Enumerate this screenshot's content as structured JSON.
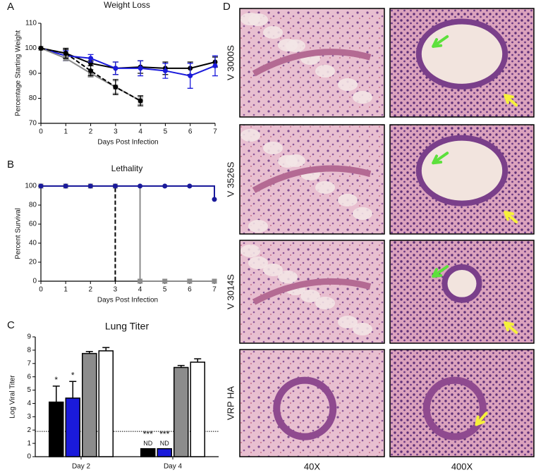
{
  "chart_data": [
    {
      "type": "line",
      "panel_label": "A",
      "title": "Weight Loss",
      "x_label": "Days Post Infection",
      "y_label": "Percentage Starting Weight",
      "x": [
        0,
        1,
        2,
        3,
        4,
        5,
        6,
        7
      ],
      "xlim": [
        0,
        7
      ],
      "xticks": [
        0,
        1,
        2,
        3,
        4,
        5,
        6,
        7
      ],
      "ylim": [
        70,
        110
      ],
      "yticks": [
        70,
        80,
        90,
        100,
        110
      ],
      "series": [
        {
          "color": "#000000",
          "line_style": "solid",
          "marker": "circle",
          "values": [
            100,
            98,
            94,
            92,
            92.5,
            92,
            92,
            94.5
          ],
          "errors": [
            0,
            1.5,
            1,
            2.5,
            2.5,
            2.5,
            2.5,
            2
          ]
        },
        {
          "color": "#1a1adb",
          "line_style": "solid",
          "marker": "circle",
          "values": [
            100,
            97,
            96,
            92,
            92,
            91,
            89,
            93
          ],
          "errors": [
            0,
            2,
            1.5,
            2.5,
            3,
            3,
            5,
            4
          ]
        },
        {
          "color": "#8c8c8c",
          "line_style": "solid",
          "marker": "square",
          "values": [
            100,
            96,
            90,
            84.5,
            79,
            null,
            null,
            null
          ],
          "errors": [
            0,
            1,
            1.5,
            2.5,
            1.5,
            null,
            null,
            null
          ]
        },
        {
          "color": "#000000",
          "line_style": "dashed",
          "marker": "circle",
          "values": [
            100,
            98,
            91,
            84.5,
            79,
            null,
            null,
            null
          ],
          "errors": [
            0,
            2,
            2,
            3,
            2,
            null,
            null,
            null
          ]
        }
      ]
    },
    {
      "type": "step",
      "panel_label": "B",
      "title": "Lethality",
      "x_label": "Days Post Infection",
      "y_label": "Percent Survival",
      "x": [
        0,
        1,
        2,
        3,
        4,
        5,
        6,
        7
      ],
      "xlim": [
        0,
        7
      ],
      "xticks": [
        0,
        1,
        2,
        3,
        4,
        5,
        6,
        7
      ],
      "ylim": [
        0,
        100
      ],
      "yticks": [
        0,
        20,
        40,
        60,
        80,
        100
      ],
      "series": [
        {
          "color": "#8c8c8c",
          "line_style": "solid",
          "marker": "square",
          "values": [
            100,
            100,
            100,
            100,
            0,
            0,
            0,
            0
          ]
        },
        {
          "color": "#000000",
          "line_style": "dashed",
          "marker": "none",
          "values": [
            100,
            100,
            100,
            0,
            null,
            null,
            null,
            null
          ]
        },
        {
          "color": "#1a1a9b",
          "line_style": "solid",
          "marker": "circle",
          "values": [
            100,
            100,
            100,
            100,
            100,
            100,
            100,
            86
          ]
        }
      ]
    },
    {
      "type": "bar",
      "panel_label": "C",
      "title": "Lung Titer",
      "y_label": "Log Viral Titer",
      "categories": [
        "Day 2",
        "Day 4"
      ],
      "ylim": [
        0,
        9
      ],
      "yticks": [
        0,
        1,
        2,
        3,
        4,
        5,
        6,
        7,
        8,
        9
      ],
      "threshold": 1.9,
      "series": [
        {
          "color": "#000000",
          "values": [
            4.1,
            0.6
          ],
          "errors": [
            1.2,
            0
          ],
          "stars": [
            "*",
            "***"
          ],
          "notes": [
            null,
            "ND"
          ]
        },
        {
          "color": "#1a1adb",
          "values": [
            4.4,
            0.6
          ],
          "errors": [
            1.25,
            0
          ],
          "stars": [
            "*",
            "***"
          ],
          "notes": [
            null,
            "ND"
          ]
        },
        {
          "color": "#8c8c8c",
          "values": [
            7.75,
            6.7
          ],
          "errors": [
            0.15,
            0.15
          ],
          "stars": [
            null,
            null
          ],
          "notes": [
            null,
            null
          ]
        },
        {
          "color": "#ffffff",
          "values": [
            7.95,
            7.1
          ],
          "errors": [
            0.25,
            0.25
          ],
          "stars": [
            null,
            null
          ],
          "notes": [
            null,
            null
          ]
        }
      ]
    }
  ],
  "image_grid": {
    "panel_label": "D",
    "rows": [
      "V 3000S",
      "V 3526S",
      "V 3014S",
      "VRP HA"
    ],
    "columns": [
      "40X",
      "400X"
    ]
  }
}
